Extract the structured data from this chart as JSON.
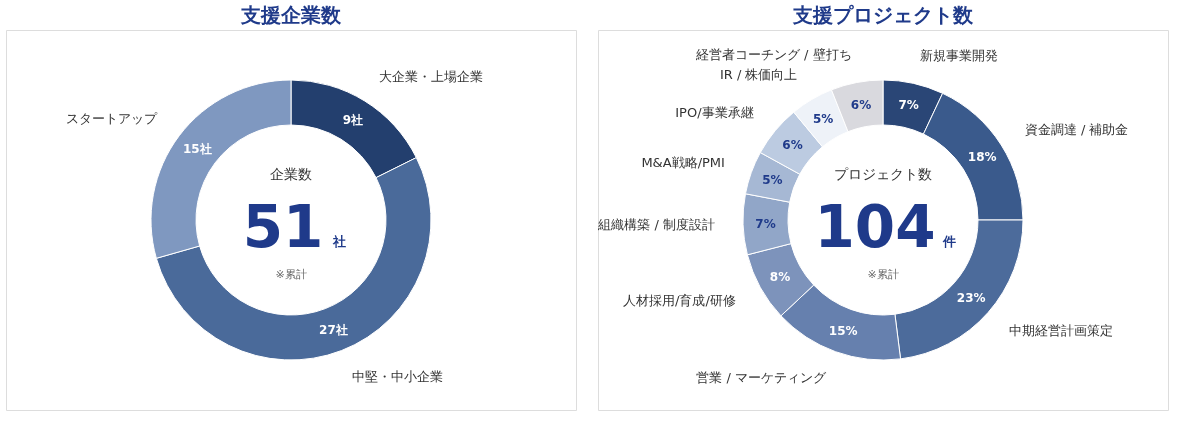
{
  "chart_data": [
    {
      "type": "donut",
      "title": "支援企業数",
      "categories": [
        "大企業・上場企業",
        "中堅・中小企業",
        "スタートアップ"
      ],
      "values": [
        9,
        27,
        15
      ],
      "colors": [
        "#233f6e",
        "#4a6a9a",
        "#7f98c0"
      ],
      "value_labels": [
        "9社",
        "27社",
        "15社"
      ],
      "annotations": [
        "企業数",
        "51",
        "社",
        "※累計"
      ]
    },
    {
      "type": "donut",
      "title": "支援プロジェクト数",
      "categories": [
        "新規事業開発",
        "資金調達 / 補助金",
        "中期経営計画策定",
        "営業 / マーケティング",
        "人材採用/育成/研修",
        "組織構築 / 制度設計",
        "M&A戦略/PMI",
        "IPO/事業承継",
        "IR / 株価向上",
        "経営者コーチング / 壁打ち"
      ],
      "values": [
        7,
        18,
        23,
        15,
        8,
        7,
        5,
        6,
        5,
        6
      ],
      "colors": [
        "#2a4676",
        "#3a5a8c",
        "#4c6b9b",
        "#6680ae",
        "#7d93bb",
        "#91a6c8",
        "#a6b8d4",
        "#bccbe1",
        "#eef2f8",
        "#d9d9de"
      ],
      "value_labels": [
        "7%",
        "18%",
        "23%",
        "15%",
        "8%",
        "7%",
        "5%",
        "6%",
        "5%",
        "6%"
      ],
      "annotations": [
        "プロジェクト数",
        "104",
        "件",
        "※累計"
      ]
    }
  ]
}
